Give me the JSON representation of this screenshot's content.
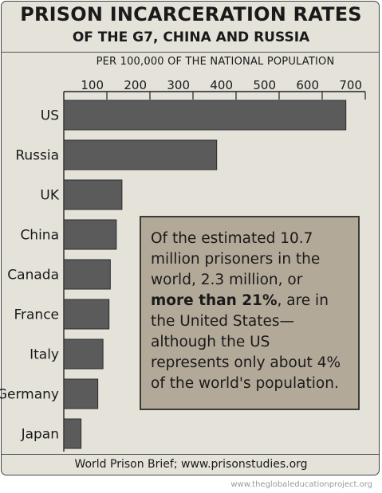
{
  "header": {
    "title": "PRISON INCARCERATION RATES",
    "subtitle": "OF THE G7, CHINA AND RUSSIA",
    "unit_label": "PER 100,000 OF THE NATIONAL POPULATION"
  },
  "chart_data": {
    "type": "bar",
    "orientation": "horizontal",
    "title": "PRISON INCARCERATION RATES OF THE G7, CHINA AND RUSSIA",
    "xlabel": "PER 100,000 OF THE NATIONAL POPULATION",
    "categories": [
      "US",
      "Russia",
      "UK",
      "China",
      "Canada",
      "France",
      "Italy",
      "Germany",
      "Japan"
    ],
    "values": [
      655,
      355,
      135,
      122,
      108,
      105,
      91,
      79,
      40
    ],
    "xlim": [
      0,
      700
    ],
    "xticks": [
      100,
      200,
      300,
      400,
      500,
      600,
      700
    ],
    "grid": false,
    "bar_color": "#5c5b5c"
  },
  "note": {
    "text_before": "Of the estimated 10.7 million prisoners in the world, 2.3 million, or ",
    "text_bold": "more than 21%",
    "text_after": ", are in the United States—although the US represents only about 4% of the world's population."
  },
  "source": "World Prison Brief; www.prisonstudies.org",
  "credit": "www.theglobaleducationproject.org",
  "colors": {
    "background": "#e4e2d9",
    "bar": "#5c5b5c",
    "note_box": "#b3a998"
  }
}
